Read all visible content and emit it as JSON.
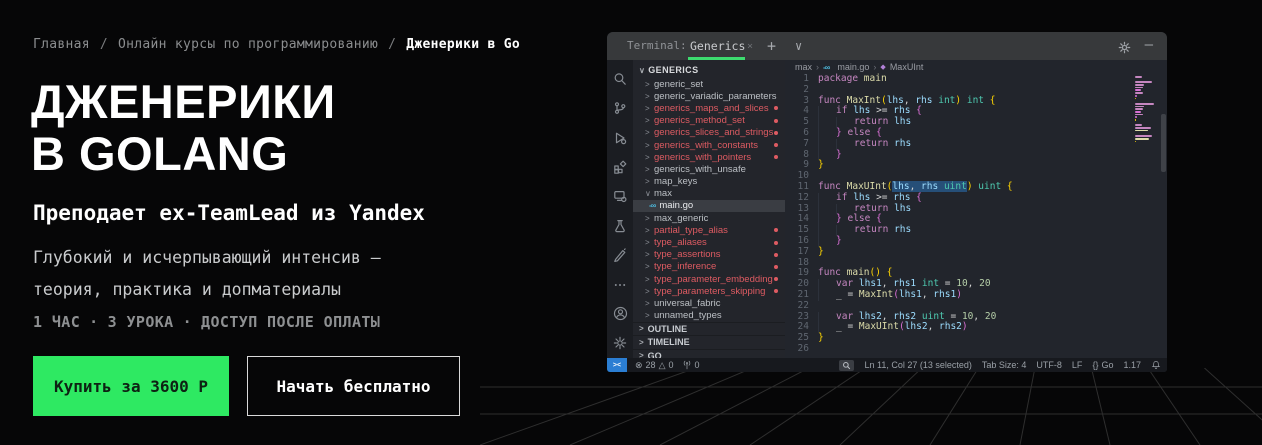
{
  "breadcrumb": {
    "items": [
      "Главная",
      "Онлайн курсы по программированию",
      "Дженерики в Go"
    ],
    "separator": "/"
  },
  "hero": {
    "title_line1": "ДЖЕНЕРИКИ",
    "title_line2": "В GOLANG",
    "subtitle": "Преподает ex-TeamLead из Yandex",
    "description_line1": "Глубокий и исчерпывающий интенсив —",
    "description_line2": "теория, практика и допматериалы",
    "meta_parts": [
      "1 ЧАС",
      "3 УРОКА",
      "ДОСТУП ПОСЛЕ ОПЛАТЫ"
    ],
    "meta_separator": "·",
    "buy_button": "Купить за 3600 Р",
    "free_button": "Начать бесплатно"
  },
  "colors": {
    "accent_green": "#2EE962",
    "tab_underline_green": "#3DDC6F",
    "modified_red": "#DE5B62",
    "selection_blue": "#264F78",
    "remote_badge_blue": "#2B7ED3"
  },
  "vscode": {
    "titlebar": {
      "app": "Terminal:",
      "tab": "Generics",
      "close": "×",
      "plus": "+",
      "chevron": "∨",
      "minimize": "–"
    },
    "icons": {
      "go_file": "-∞",
      "method": "◆",
      "breadcrumb_separator": "›",
      "error": "⊗",
      "warning": "△"
    },
    "activity_icons": [
      "search",
      "source-control",
      "run-and-debug",
      "extensions",
      "remote-explorer",
      "testing",
      "misc-extension",
      "more",
      "account",
      "settings"
    ],
    "explorer": {
      "section": "GENERICS",
      "files": [
        {
          "kind": "folder",
          "name": "generic_set",
          "modified": false
        },
        {
          "kind": "folder",
          "name": "generic_variadic_parameters",
          "modified": false
        },
        {
          "kind": "folder",
          "name": "generics_maps_and_slices",
          "modified": true
        },
        {
          "kind": "folder",
          "name": "generics_method_set",
          "modified": true
        },
        {
          "kind": "folder",
          "name": "generics_slices_and_strings",
          "modified": true
        },
        {
          "kind": "folder",
          "name": "generics_with_constants",
          "modified": true
        },
        {
          "kind": "folder",
          "name": "generics_with_pointers",
          "modified": true
        },
        {
          "kind": "folder",
          "name": "generics_with_unsafe",
          "modified": false
        },
        {
          "kind": "folder",
          "name": "map_keys",
          "modified": false
        },
        {
          "kind": "folder-open",
          "name": "max",
          "modified": false
        },
        {
          "kind": "file-go",
          "name": "main.go",
          "selected": true
        },
        {
          "kind": "folder",
          "name": "max_generic",
          "modified": false
        },
        {
          "kind": "folder",
          "name": "partial_type_alias",
          "modified": true
        },
        {
          "kind": "folder",
          "name": "type_aliases",
          "modified": true
        },
        {
          "kind": "folder",
          "name": "type_assertions",
          "modified": true
        },
        {
          "kind": "folder",
          "name": "type_inference",
          "modified": true
        },
        {
          "kind": "folder",
          "name": "type_parameter_embedding",
          "modified": true
        },
        {
          "kind": "folder",
          "name": "type_parameters_skipping",
          "modified": true
        },
        {
          "kind": "folder",
          "name": "universal_fabric",
          "modified": false
        },
        {
          "kind": "folder",
          "name": "unnamed_types",
          "modified": false
        }
      ],
      "bottom_sections": [
        "OUTLINE",
        "TIMELINE",
        "GO"
      ]
    },
    "editor_breadcrumb": {
      "items": [
        "max",
        "main.go",
        "MaxUInt"
      ]
    },
    "code": {
      "lines": [
        {
          "n": 1,
          "t": [
            [
              "package",
              "k"
            ],
            [
              " "
            ],
            [
              "main",
              "f"
            ]
          ]
        },
        {
          "n": 2,
          "t": []
        },
        {
          "n": 3,
          "t": [
            [
              "func",
              "k"
            ],
            [
              " "
            ],
            [
              "MaxInt",
              "f"
            ],
            [
              "(",
              "g"
            ],
            [
              "lhs",
              "v"
            ],
            [
              ", "
            ],
            [
              "rhs",
              "v"
            ],
            [
              " "
            ],
            [
              "int",
              "t"
            ],
            [
              ")",
              "g"
            ],
            [
              " "
            ],
            [
              "int",
              "t"
            ],
            [
              " "
            ],
            [
              "{",
              "g"
            ]
          ]
        },
        {
          "n": 4,
          "t": [
            [
              "\t",
              "i"
            ],
            [
              "if",
              "k"
            ],
            [
              " "
            ],
            [
              "lhs",
              "v"
            ],
            [
              " >= "
            ],
            [
              "rhs",
              "v"
            ],
            [
              " "
            ],
            [
              "{",
              "m"
            ]
          ]
        },
        {
          "n": 5,
          "t": [
            [
              "\t",
              "i"
            ],
            [
              "\t",
              "i"
            ],
            [
              "return",
              "k"
            ],
            [
              " "
            ],
            [
              "lhs",
              "v"
            ]
          ]
        },
        {
          "n": 6,
          "t": [
            [
              "\t",
              "i"
            ],
            [
              "}",
              "m"
            ],
            [
              " "
            ],
            [
              "else",
              "k"
            ],
            [
              " "
            ],
            [
              "{",
              "m"
            ]
          ]
        },
        {
          "n": 7,
          "t": [
            [
              "\t",
              "i"
            ],
            [
              "\t",
              "i"
            ],
            [
              "return",
              "k"
            ],
            [
              " "
            ],
            [
              "rhs",
              "v"
            ]
          ]
        },
        {
          "n": 8,
          "t": [
            [
              "\t",
              "i"
            ],
            [
              "}",
              "m"
            ]
          ]
        },
        {
          "n": 9,
          "t": [
            [
              "}",
              "g"
            ]
          ]
        },
        {
          "n": 10,
          "t": []
        },
        {
          "n": 11,
          "t": [
            [
              "func",
              "k"
            ],
            [
              " "
            ],
            [
              "MaxUInt",
              "f"
            ],
            [
              "(",
              "g"
            ],
            [
              "lhs",
              "v s"
            ],
            [
              ", ",
              "p s"
            ],
            [
              "rhs",
              "v s"
            ],
            [
              " ",
              "p s"
            ],
            [
              "uint",
              "t s"
            ],
            [
              ")",
              "g"
            ],
            [
              " "
            ],
            [
              "uint",
              "t"
            ],
            [
              " "
            ],
            [
              "{",
              "g"
            ]
          ]
        },
        {
          "n": 12,
          "t": [
            [
              "\t",
              "i"
            ],
            [
              "if",
              "k"
            ],
            [
              " "
            ],
            [
              "lhs",
              "v"
            ],
            [
              " >= "
            ],
            [
              "rhs",
              "v"
            ],
            [
              " "
            ],
            [
              "{",
              "m"
            ]
          ]
        },
        {
          "n": 13,
          "t": [
            [
              "\t",
              "i"
            ],
            [
              "\t",
              "i"
            ],
            [
              "return",
              "k"
            ],
            [
              " "
            ],
            [
              "lhs",
              "v"
            ]
          ]
        },
        {
          "n": 14,
          "t": [
            [
              "\t",
              "i"
            ],
            [
              "}",
              "m"
            ],
            [
              " "
            ],
            [
              "else",
              "k"
            ],
            [
              " "
            ],
            [
              "{",
              "m"
            ]
          ]
        },
        {
          "n": 15,
          "t": [
            [
              "\t",
              "i"
            ],
            [
              "\t",
              "i"
            ],
            [
              "return",
              "k"
            ],
            [
              " "
            ],
            [
              "rhs",
              "v"
            ]
          ]
        },
        {
          "n": 16,
          "t": [
            [
              "\t",
              "i"
            ],
            [
              "}",
              "m"
            ]
          ]
        },
        {
          "n": 17,
          "t": [
            [
              "}",
              "g"
            ]
          ]
        },
        {
          "n": 18,
          "t": []
        },
        {
          "n": 19,
          "t": [
            [
              "func",
              "k"
            ],
            [
              " "
            ],
            [
              "main",
              "f"
            ],
            [
              "()",
              "g"
            ],
            [
              " "
            ],
            [
              "{",
              "g"
            ]
          ]
        },
        {
          "n": 20,
          "t": [
            [
              "\t",
              "i"
            ],
            [
              "var",
              "k"
            ],
            [
              " "
            ],
            [
              "lhs1",
              "v"
            ],
            [
              ", "
            ],
            [
              "rhs1",
              "v"
            ],
            [
              " "
            ],
            [
              "int",
              "t"
            ],
            [
              " = "
            ],
            [
              "10",
              "n"
            ],
            [
              ", "
            ],
            [
              "20",
              "n"
            ]
          ]
        },
        {
          "n": 21,
          "t": [
            [
              "\t",
              "i"
            ],
            [
              "_ = "
            ],
            [
              "MaxInt",
              "f"
            ],
            [
              "(",
              "m"
            ],
            [
              "lhs1",
              "v"
            ],
            [
              ", "
            ],
            [
              "rhs1",
              "v"
            ],
            [
              ")",
              "m"
            ]
          ]
        },
        {
          "n": 22,
          "t": []
        },
        {
          "n": 23,
          "t": [
            [
              "\t",
              "i"
            ],
            [
              "var",
              "k"
            ],
            [
              " "
            ],
            [
              "lhs2",
              "v"
            ],
            [
              ", "
            ],
            [
              "rhs2",
              "v"
            ],
            [
              " "
            ],
            [
              "uint",
              "t"
            ],
            [
              " = "
            ],
            [
              "10",
              "n"
            ],
            [
              ", "
            ],
            [
              "20",
              "n"
            ]
          ]
        },
        {
          "n": 24,
          "t": [
            [
              "\t",
              "i"
            ],
            [
              "_ = "
            ],
            [
              "MaxUInt",
              "f"
            ],
            [
              "(",
              "m"
            ],
            [
              "lhs2",
              "v"
            ],
            [
              ", "
            ],
            [
              "rhs2",
              "v"
            ],
            [
              ")",
              "m"
            ]
          ]
        },
        {
          "n": 25,
          "t": [
            [
              "}",
              "g"
            ]
          ]
        },
        {
          "n": 26,
          "t": []
        }
      ]
    },
    "statusbar": {
      "errors": "28",
      "warnings": "0",
      "ports": "0",
      "right_items": [
        {
          "name": "cursor-position",
          "label": "Ln 11, Col 27 (13 selected)"
        },
        {
          "name": "tab-size",
          "label": "Tab Size: 4"
        },
        {
          "name": "encoding",
          "label": "UTF-8"
        },
        {
          "name": "eol",
          "label": "LF"
        },
        {
          "name": "language-mode",
          "label": "Go",
          "prefix": "{}"
        },
        {
          "name": "go-version",
          "label": "1.17"
        }
      ]
    }
  }
}
